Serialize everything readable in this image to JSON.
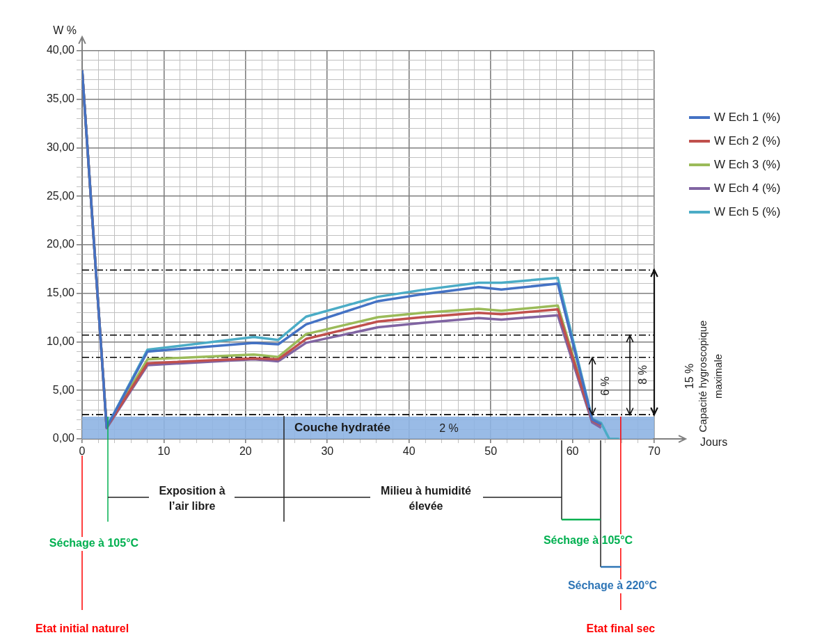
{
  "chart_data": {
    "type": "line",
    "xlabel": "Jours",
    "ylabel": "W %",
    "x": [
      0,
      3,
      8,
      21,
      24,
      27.4,
      36.2,
      41.6,
      48.5,
      51.3,
      58.2,
      62.4,
      63.5,
      64.5,
      65.7
    ],
    "series": [
      {
        "name": "W Ech 1 (%)",
        "color": "#4472c4",
        "values": [
          38,
          1.2,
          9.0,
          9.9,
          9.75,
          11.8,
          14.2,
          14.9,
          15.65,
          15.4,
          16.0,
          2.0,
          1.5,
          null,
          null
        ]
      },
      {
        "name": "W Ech 2 (%)",
        "color": "#c0504d",
        "values": [
          38,
          1.2,
          7.8,
          8.3,
          8.2,
          10.3,
          12.1,
          12.55,
          13.0,
          12.85,
          13.35,
          1.9,
          1.4,
          null,
          null
        ]
      },
      {
        "name": "W Ech 3 (%)",
        "color": "#9bbb59",
        "values": [
          38,
          1.2,
          8.2,
          8.7,
          8.45,
          10.8,
          12.55,
          13.0,
          13.4,
          13.2,
          13.75,
          2.0,
          1.5,
          null,
          null
        ]
      },
      {
        "name": "W Ech 4 (%)",
        "color": "#8064a2",
        "values": [
          38,
          1.1,
          7.6,
          8.2,
          8.0,
          9.9,
          11.5,
          11.95,
          12.45,
          12.3,
          12.75,
          1.7,
          1.15,
          null,
          null
        ]
      },
      {
        "name": "W Ech 5 (%)",
        "color": "#4bacc6",
        "values": [
          38,
          1.2,
          9.2,
          10.5,
          10.2,
          12.6,
          14.65,
          15.35,
          16.1,
          16.1,
          16.6,
          2.1,
          1.65,
          0,
          0
        ]
      }
    ],
    "xlim": [
      0,
      70
    ],
    "xticks": [
      0,
      {
        "value": 2,
        "label": null
      },
      {
        "value": 4,
        "label": null
      },
      {
        "value": 6,
        "label": null
      },
      {
        "value": 8,
        "label": null
      },
      10,
      {
        "value": 12,
        "label": null
      },
      {
        "value": 14,
        "label": null
      },
      {
        "value": 16,
        "label": null
      },
      {
        "value": 18,
        "label": null
      },
      20,
      {
        "value": 22,
        "label": null
      },
      {
        "value": 24,
        "label": null
      },
      {
        "value": 26,
        "label": null
      },
      {
        "value": 28,
        "label": null
      },
      30,
      {
        "value": 32,
        "label": null
      },
      {
        "value": 34,
        "label": null
      },
      {
        "value": 36,
        "label": null
      },
      {
        "value": 38,
        "label": null
      },
      40,
      {
        "value": 42,
        "label": null
      },
      {
        "value": 44,
        "label": null
      },
      {
        "value": 46,
        "label": null
      },
      {
        "value": 48,
        "label": null
      },
      50,
      {
        "value": 52,
        "label": null
      },
      {
        "value": 54,
        "label": null
      },
      {
        "value": 56,
        "label": null
      },
      {
        "value": 58,
        "label": null
      },
      60,
      {
        "value": 62,
        "label": null
      },
      {
        "value": 64,
        "label": null
      },
      {
        "value": 66,
        "label": null
      },
      {
        "value": 68,
        "label": null
      },
      70
    ],
    "ylim": [
      0,
      40
    ],
    "yticks": [
      {
        "value": 0,
        "label": "0,00"
      },
      {
        "value": 1,
        "label": null
      },
      {
        "value": 2,
        "label": null
      },
      {
        "value": 3,
        "label": null
      },
      {
        "value": 4,
        "label": null
      },
      {
        "value": 5,
        "label": "5,00"
      },
      {
        "value": 6,
        "label": null
      },
      {
        "value": 7,
        "label": null
      },
      {
        "value": 8,
        "label": null
      },
      {
        "value": 9,
        "label": null
      },
      {
        "value": 10,
        "label": "10,00"
      },
      {
        "value": 11,
        "label": null
      },
      {
        "value": 12,
        "label": null
      },
      {
        "value": 13,
        "label": null
      },
      {
        "value": 14,
        "label": null
      },
      {
        "value": 15,
        "label": "15,00"
      },
      {
        "value": 16,
        "label": null
      },
      {
        "value": 17,
        "label": null
      },
      {
        "value": 18,
        "label": null
      },
      {
        "value": 19,
        "label": null
      },
      {
        "value": 20,
        "label": "20,00"
      },
      {
        "value": 21,
        "label": null
      },
      {
        "value": 22,
        "label": null
      },
      {
        "value": 23,
        "label": null
      },
      {
        "value": 24,
        "label": null
      },
      {
        "value": 25,
        "label": "25,00"
      },
      {
        "value": 26,
        "label": null
      },
      {
        "value": 27,
        "label": null
      },
      {
        "value": 28,
        "label": null
      },
      {
        "value": 29,
        "label": null
      },
      {
        "value": 30,
        "label": "30,00"
      },
      {
        "value": 31,
        "label": null
      },
      {
        "value": 32,
        "label": null
      },
      {
        "value": 33,
        "label": null
      },
      {
        "value": 34,
        "label": null
      },
      {
        "value": 35,
        "label": "35,00"
      },
      {
        "value": 36,
        "label": null
      },
      {
        "value": 37,
        "label": null
      },
      {
        "value": 38,
        "label": null
      },
      {
        "value": 39,
        "label": null
      },
      {
        "value": 40,
        "label": "40,00"
      }
    ],
    "grid": true,
    "legend": "right",
    "marker": "none",
    "line_style": "solid",
    "ref_lines": [
      {
        "axis": "y",
        "value": 17.4,
        "line_style": "dashed",
        "color": "#000000"
      },
      {
        "axis": "y",
        "value": 10.7,
        "line_style": "dashed",
        "color": "#000000"
      },
      {
        "axis": "y",
        "value": 8.4,
        "line_style": "dashed",
        "color": "#000000"
      },
      {
        "axis": "y",
        "value": 2.5,
        "line_style": "dashed",
        "color": "#000000"
      },
      {
        "axis": "x",
        "value": 0,
        "label": "Etat initial naturel",
        "color": "#ff0000"
      },
      {
        "axis": "x",
        "value": 3.15,
        "label": "Séchage à 105°C",
        "color": "#00b050"
      },
      {
        "axis": "x",
        "value": 65.9,
        "label": "Etat final sec",
        "color": "#ff0000"
      }
    ],
    "bands": [
      {
        "axis": "y",
        "from": 0,
        "to": 2.3,
        "label": "Couche hydratée",
        "color": "#8eb4e3"
      }
    ],
    "annotations": [
      {
        "text": "6 %",
        "x": 62.4,
        "y": 8.4
      },
      {
        "text": "8 %",
        "x": 67,
        "y": 10.7
      },
      "2 %",
      "15 %",
      "Capacité hygroscopique maximale",
      "Exposition à l’air libre",
      "Milieu à humidité élevée",
      "Séchage à 105°C",
      "Séchage à 220°C"
    ]
  }
}
